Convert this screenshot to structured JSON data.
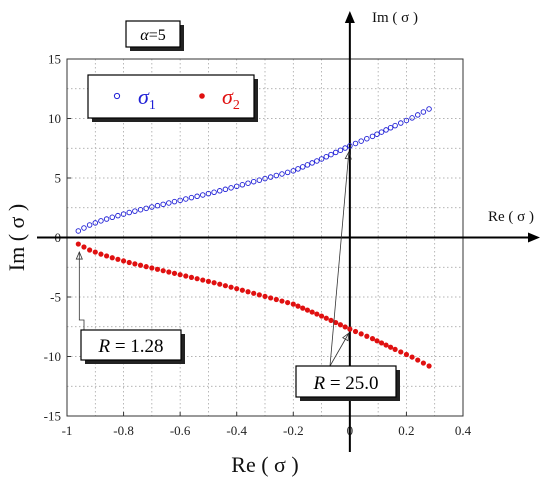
{
  "chart_data": {
    "type": "scatter",
    "title": "",
    "xlabel": "Re ( σ )",
    "ylabel": "Im ( σ )",
    "inner_axes": {
      "x_label": "Re ( σ )",
      "y_label": "Im ( σ )"
    },
    "xlim": [
      -1,
      0.4
    ],
    "ylim": [
      -15,
      15
    ],
    "x_ticks": [
      "-1",
      "-0.8",
      "-0.6",
      "-0.4",
      "-0.2",
      "0",
      "0.2",
      "0.4"
    ],
    "y_ticks": [
      "15",
      "10",
      "5",
      "0",
      "-5",
      "-10",
      "-15"
    ],
    "grid": true,
    "parameter_label": {
      "symbol": "α",
      "text": "=5"
    },
    "legend": {
      "placement": "top-left",
      "entries": [
        {
          "symbol": "σ",
          "subscript": "1",
          "marker": "open-circle",
          "color": "#1f1fd6"
        },
        {
          "symbol": "σ",
          "subscript": "2",
          "marker": "filled-circle",
          "color": "#e01010"
        }
      ]
    },
    "series": [
      {
        "name": "σ1",
        "color": "#1f1fd6",
        "marker": "open-circle",
        "points": [
          [
            -0.96,
            0.55
          ],
          [
            -0.94,
            0.8
          ],
          [
            -0.92,
            1.05
          ],
          [
            -0.88,
            1.4
          ],
          [
            -0.84,
            1.7
          ],
          [
            -0.78,
            2.1
          ],
          [
            -0.72,
            2.45
          ],
          [
            -0.64,
            2.9
          ],
          [
            -0.56,
            3.35
          ],
          [
            -0.48,
            3.8
          ],
          [
            -0.4,
            4.3
          ],
          [
            -0.3,
            4.95
          ],
          [
            -0.2,
            5.6
          ],
          [
            -0.1,
            6.6
          ],
          [
            0.0,
            7.7
          ],
          [
            0.08,
            8.5
          ],
          [
            0.16,
            9.4
          ],
          [
            0.22,
            10.05
          ],
          [
            0.28,
            10.8
          ]
        ]
      },
      {
        "name": "σ2",
        "color": "#e01010",
        "marker": "filled-circle",
        "points": [
          [
            -0.96,
            -0.55
          ],
          [
            -0.94,
            -0.8
          ],
          [
            -0.92,
            -1.05
          ],
          [
            -0.88,
            -1.4
          ],
          [
            -0.84,
            -1.7
          ],
          [
            -0.78,
            -2.1
          ],
          [
            -0.72,
            -2.45
          ],
          [
            -0.64,
            -2.9
          ],
          [
            -0.56,
            -3.35
          ],
          [
            -0.48,
            -3.8
          ],
          [
            -0.4,
            -4.3
          ],
          [
            -0.3,
            -4.95
          ],
          [
            -0.2,
            -5.6
          ],
          [
            -0.1,
            -6.6
          ],
          [
            0.0,
            -7.7
          ],
          [
            0.08,
            -8.5
          ],
          [
            0.16,
            -9.4
          ],
          [
            0.22,
            -10.05
          ],
          [
            0.28,
            -10.8
          ]
        ]
      }
    ],
    "annotations": [
      {
        "symbol": "R",
        "text": " = 1.28",
        "target": [
          -0.96,
          -0.55
        ],
        "target_series": "σ2"
      },
      {
        "symbol": "R",
        "text": " = 25.0",
        "targets": [
          [
            0.0,
            7.7
          ],
          [
            0.0,
            -7.7
          ]
        ]
      }
    ]
  }
}
